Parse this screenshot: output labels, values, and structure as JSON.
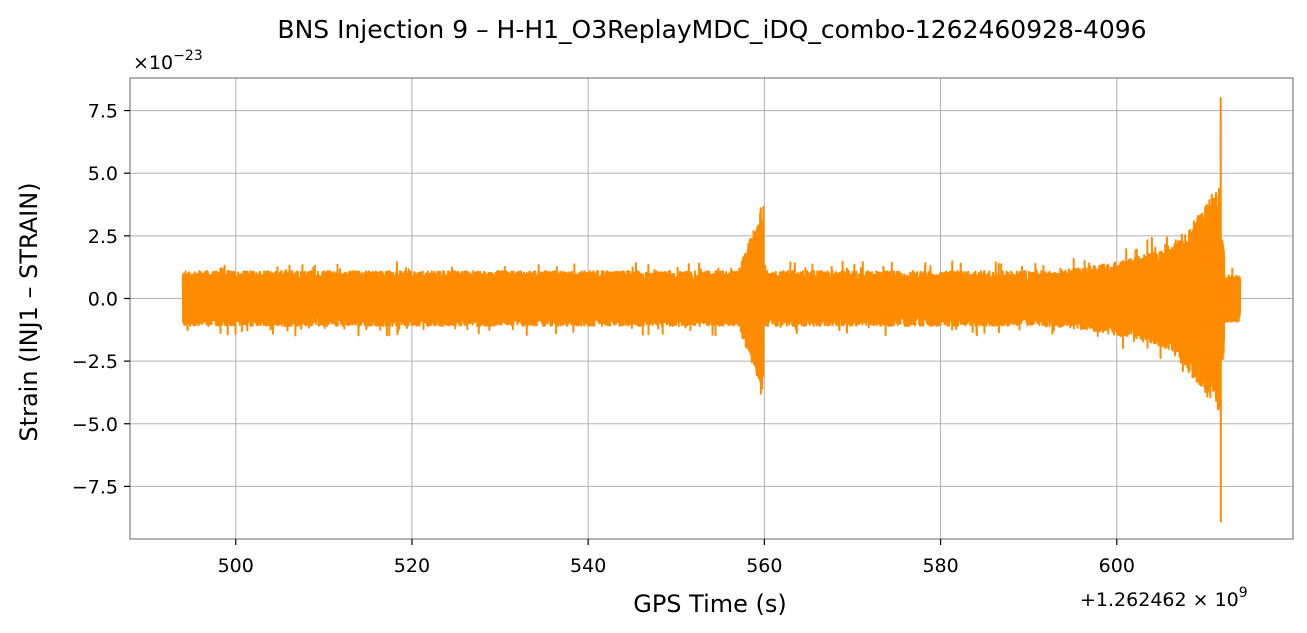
{
  "chart_data": {
    "type": "line",
    "title": "BNS Injection 9 – H-H1_O3ReplayMDC_iDQ_combo-1262460928-4096",
    "xlabel": "GPS Time (s)",
    "ylabel": "Strain (INJ1 – STRAIN)",
    "x_offset_label": "+1.262462 × 10^9",
    "y_scale_label": "×10^-23",
    "xlim": [
      488,
      620
    ],
    "ylim": [
      -9.6,
      8.8
    ],
    "x_ticks": [
      500,
      520,
      540,
      560,
      580,
      600
    ],
    "x_tick_labels": [
      "500",
      "520",
      "540",
      "560",
      "580",
      "600"
    ],
    "y_ticks": [
      7.5,
      5.0,
      2.5,
      0.0,
      -2.5,
      -5.0,
      -7.5
    ],
    "y_tick_labels": [
      "7.5",
      "5.0",
      "2.5",
      "0.0",
      "−2.5",
      "−5.0",
      "−7.5"
    ],
    "grid": true,
    "line_color": "#ff8c00",
    "series": [
      {
        "x_range": [
          494,
          614
        ],
        "baseline_amplitude": 1.1,
        "features": [
          {
            "x": 559.6,
            "y_max": 3.6,
            "y_min": -3.8
          },
          {
            "x": 611.8,
            "y_max": 8.0,
            "y_min": -8.9
          }
        ]
      }
    ]
  }
}
